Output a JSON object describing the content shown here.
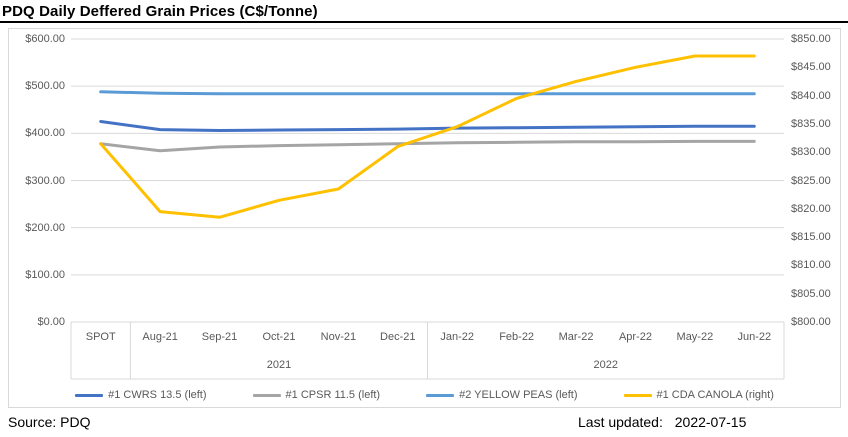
{
  "title": "PDQ Daily Deffered Grain Prices (C$/Tonne)",
  "footer": {
    "source": "Source: PDQ",
    "last_updated_label": "Last updated:",
    "last_updated_value": "2022-07-15"
  },
  "chart_data": {
    "type": "line",
    "title": "PDQ Daily Deffered Grain Prices (C$/Tonne)",
    "categories": [
      "SPOT",
      "Aug-21",
      "Sep-21",
      "Oct-21",
      "Nov-21",
      "Dec-21",
      "Jan-22",
      "Feb-22",
      "Mar-22",
      "Apr-22",
      "May-22",
      "Jun-22"
    ],
    "year_groups": [
      {
        "label": "2021",
        "first_index": 1,
        "last_index": 5
      },
      {
        "label": "2022",
        "first_index": 6,
        "last_index": 11
      }
    ],
    "left_axis": {
      "min": 0,
      "max": 600,
      "step": 100,
      "tick_labels_top_to_bottom": [
        "$600.00",
        "$500.00",
        "$400.00",
        "$300.00",
        "$200.00",
        "$100.00",
        "$0.00"
      ]
    },
    "right_axis": {
      "min": 800,
      "max": 850,
      "step": 5,
      "tick_labels_top_to_bottom": [
        "$850.00",
        "$845.00",
        "$840.00",
        "$835.00",
        "$830.00",
        "$825.00",
        "$820.00",
        "$815.00",
        "$810.00",
        "$805.00",
        "$800.00"
      ]
    },
    "grid": true,
    "legend_position": "bottom",
    "colors": {
      "grid": "#D9D9D9",
      "axis_text": "#595959",
      "title_text": "#000000"
    },
    "series": [
      {
        "name": "#1 CWRS 13.5 (left)",
        "axis": "left",
        "color": "#4472C4",
        "values": [
          425,
          408,
          406,
          407,
          408,
          409,
          411,
          412,
          413,
          414,
          415,
          415
        ]
      },
      {
        "name": "#1 CPSR 11.5 (left)",
        "axis": "left",
        "color": "#A5A5A5",
        "values": [
          378,
          363,
          371,
          374,
          376,
          378,
          380,
          381,
          382,
          382,
          383,
          383
        ]
      },
      {
        "name": "#2 YELLOW PEAS (left)",
        "axis": "left",
        "color": "#5B9BD5",
        "values": [
          488,
          485,
          484,
          484,
          484,
          484,
          484,
          484,
          484,
          484,
          484,
          484
        ]
      },
      {
        "name": "#1 CDA CANOLA (right)",
        "axis": "right",
        "color": "#FFC000",
        "values": [
          831.5,
          819.5,
          818.5,
          821.5,
          823.5,
          831,
          834.5,
          839.5,
          842.5,
          845,
          847,
          847
        ]
      }
    ]
  }
}
